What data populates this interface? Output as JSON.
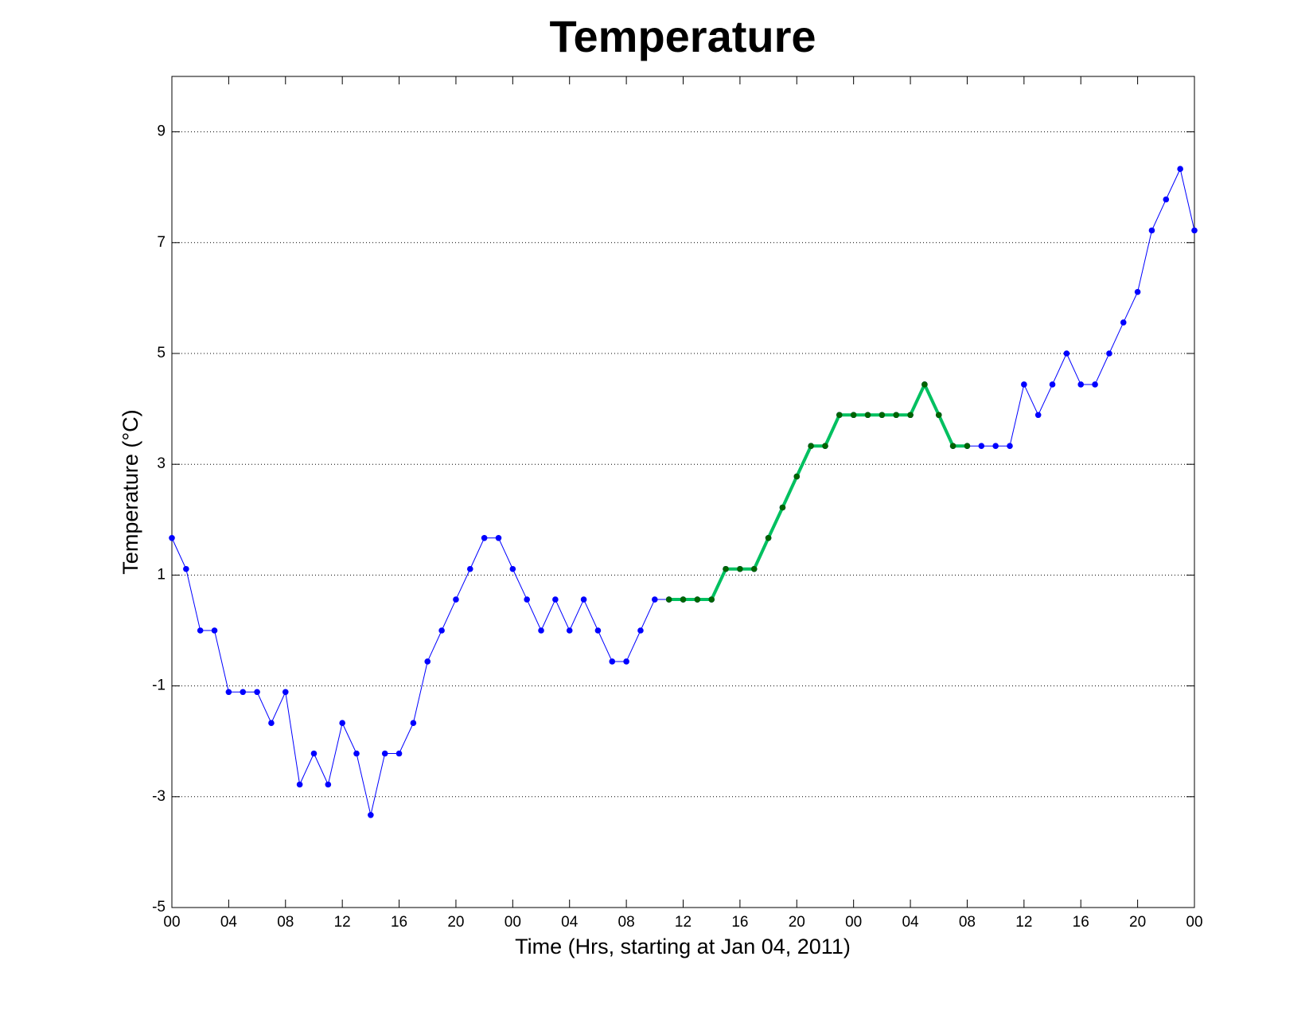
{
  "chart_data": {
    "type": "line",
    "title": "Temperature",
    "xlabel": "Time (Hrs, starting at Jan 04, 2011)",
    "ylabel": "Temperature (°C)",
    "x": [
      0,
      1,
      2,
      3,
      4,
      5,
      6,
      7,
      8,
      9,
      10,
      11,
      12,
      13,
      14,
      15,
      16,
      17,
      18,
      19,
      20,
      21,
      22,
      23,
      24,
      25,
      26,
      27,
      28,
      29,
      30,
      31,
      32,
      33,
      34,
      35,
      36,
      37,
      38,
      39,
      40,
      41,
      42,
      43,
      44,
      45,
      46,
      47,
      48,
      49,
      50,
      51,
      52,
      53,
      54,
      55,
      56,
      57,
      58,
      59,
      60,
      61,
      62,
      63,
      64,
      65,
      66,
      67,
      68,
      69,
      70,
      71,
      72
    ],
    "series": [
      {
        "color": "#0000ff",
        "marker_color": "#0000ff",
        "linewidth": 1,
        "values": [
          1.67,
          1.11,
          0,
          0,
          -1.11,
          -1.11,
          -1.11,
          -1.67,
          -1.11,
          -2.78,
          -2.22,
          -2.78,
          -1.67,
          -2.22,
          -3.33,
          -2.22,
          -2.22,
          -1.67,
          -0.56,
          0,
          0.56,
          1.11,
          1.67,
          1.67,
          1.11,
          0.56,
          0,
          0.56,
          0,
          0.56,
          0,
          -0.56,
          -0.56,
          0,
          0.56,
          0.56,
          0.56,
          0.56,
          0.56,
          1.11,
          1.11,
          1.11,
          1.67,
          2.22,
          2.78,
          3.33,
          3.33,
          3.89,
          3.89,
          3.89,
          3.89,
          3.89,
          3.89,
          4.44,
          3.89,
          3.33,
          3.33,
          3.33,
          3.33,
          3.33,
          4.44,
          3.89,
          4.44,
          5,
          4.44,
          4.44,
          5,
          5.56,
          6.11,
          7.22,
          7.78,
          8.33,
          7.22
        ]
      },
      {
        "color": "#00c060",
        "marker_color": "#006400",
        "linewidth": 4,
        "values": [
          null,
          null,
          null,
          null,
          null,
          null,
          null,
          null,
          null,
          null,
          null,
          null,
          null,
          null,
          null,
          null,
          null,
          null,
          null,
          null,
          null,
          null,
          null,
          null,
          null,
          null,
          null,
          null,
          null,
          null,
          null,
          null,
          null,
          null,
          null,
          0.56,
          0.56,
          0.56,
          0.56,
          1.11,
          1.11,
          1.11,
          1.67,
          2.22,
          2.78,
          3.33,
          3.33,
          3.89,
          3.89,
          3.89,
          3.89,
          3.89,
          3.89,
          4.44,
          3.89,
          3.33,
          3.33,
          null,
          null,
          null,
          null,
          null,
          null,
          null,
          null,
          null,
          null,
          null,
          null,
          null,
          null,
          null,
          null
        ]
      }
    ],
    "xlim": [
      0,
      72
    ],
    "xticks": [
      {
        "value": 0,
        "label": "00"
      },
      {
        "value": 4,
        "label": "04"
      },
      {
        "value": 8,
        "label": "08"
      },
      {
        "value": 12,
        "label": "12"
      },
      {
        "value": 16,
        "label": "16"
      },
      {
        "value": 20,
        "label": "20"
      },
      {
        "value": 24,
        "label": "00"
      },
      {
        "value": 28,
        "label": "04"
      },
      {
        "value": 32,
        "label": "08"
      },
      {
        "value": 36,
        "label": "12"
      },
      {
        "value": 40,
        "label": "16"
      },
      {
        "value": 44,
        "label": "20"
      },
      {
        "value": 48,
        "label": "00"
      },
      {
        "value": 52,
        "label": "04"
      },
      {
        "value": 56,
        "label": "08"
      },
      {
        "value": 60,
        "label": "12"
      },
      {
        "value": 64,
        "label": "16"
      },
      {
        "value": 68,
        "label": "20"
      },
      {
        "value": 72,
        "label": "00"
      }
    ],
    "ylim": [
      -5,
      10
    ],
    "yticks": [
      -5,
      -3,
      -1,
      1,
      3,
      5,
      7,
      9
    ],
    "grid": true
  }
}
